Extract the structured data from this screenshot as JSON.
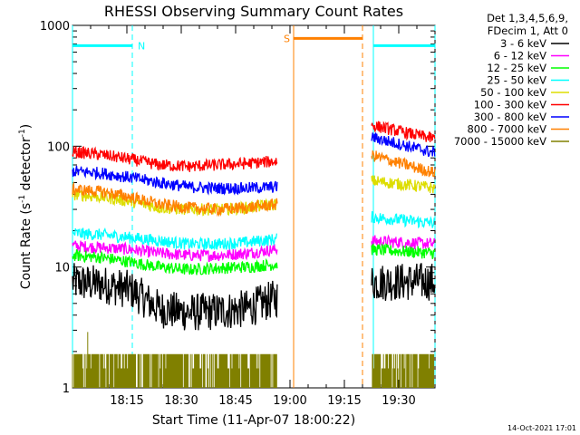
{
  "chart_data": {
    "type": "line",
    "title": "RHESSI Observing Summary Count Rates",
    "xlabel": "Start Time (11-Apr-07 18:00:22)",
    "ylabel_main": "Count Rate (s",
    "ylabel_sup1": "-1",
    "ylabel_mid": " detector",
    "ylabel_sup2": "-1",
    "ylabel_end": ")",
    "y_scale": "log",
    "ylim": [
      1,
      1000
    ],
    "xlim_minutes": [
      0,
      100
    ],
    "x_ticks": [
      {
        "minute": 15,
        "label": "18:15"
      },
      {
        "minute": 30,
        "label": "18:30"
      },
      {
        "minute": 45,
        "label": "18:45"
      },
      {
        "minute": 60,
        "label": "19:00"
      },
      {
        "minute": 75,
        "label": "19:15"
      },
      {
        "minute": 90,
        "label": "19:30"
      }
    ],
    "y_ticks": [
      {
        "value": 1,
        "label": "1"
      },
      {
        "value": 10,
        "label": "10"
      },
      {
        "value": 100,
        "label": "100"
      },
      {
        "value": 1000,
        "label": "1000"
      }
    ],
    "legend_header": [
      "Det 1,3,4,5,6,9,",
      "FDecim 1, Att 0"
    ],
    "data_gap_minutes": [
      56.5,
      80
    ],
    "series": [
      {
        "name": "3 - 6 keV",
        "color": "#000000",
        "values": [
          7.5,
          7.2,
          6.5,
          4.5,
          4.2,
          4.3,
          4.5,
          5.5,
          6.0,
          5.5,
          7.5,
          7.6
        ]
      },
      {
        "name": "6 - 12 keV",
        "color": "#ff00ff",
        "values": [
          15,
          14.5,
          14,
          13,
          12.5,
          12.5,
          13,
          14,
          15,
          15.5,
          16.5,
          15.5
        ]
      },
      {
        "name": "12 - 25 keV",
        "color": "#00ff00",
        "values": [
          12.5,
          12,
          11,
          10,
          9.5,
          9.8,
          10,
          10.5,
          11,
          11.5,
          14,
          13
        ]
      },
      {
        "name": "25 - 50 keV",
        "color": "#00ffff",
        "values": [
          19,
          18.5,
          17.5,
          16.5,
          15.5,
          15.5,
          16,
          17,
          18.5,
          20,
          26,
          23
        ]
      },
      {
        "name": "50 - 100 keV",
        "color": "#dddd00",
        "values": [
          40,
          38,
          35,
          31,
          30,
          30,
          31,
          33,
          36,
          39,
          52,
          45
        ]
      },
      {
        "name": "100 - 300 keV",
        "color": "#ff0000",
        "values": [
          90,
          85,
          78,
          70,
          68,
          70,
          72,
          75,
          78,
          80,
          150,
          115
        ]
      },
      {
        "name": "300 - 800 keV",
        "color": "#0000ff",
        "values": [
          62,
          60,
          55,
          50,
          46,
          45,
          45,
          46,
          48,
          50,
          120,
          88
        ]
      },
      {
        "name": "800 - 7000 keV",
        "color": "#ff8000",
        "values": [
          44,
          42,
          38,
          33,
          31,
          30,
          31,
          33,
          35,
          37,
          85,
          60
        ]
      },
      {
        "name": "7000 - 15000 keV",
        "color": "#808000",
        "values": [
          1.9,
          1.9,
          1.9,
          1.9,
          1.9,
          1.9,
          1.9,
          1.9,
          1.9,
          1.9,
          1.9,
          1.9
        ]
      }
    ],
    "series_minutes": [
      0,
      8,
      16,
      24,
      32,
      40,
      48,
      56,
      59,
      61,
      82,
      100
    ],
    "attenuator_bars": [
      {
        "label": "N",
        "color": "#00ffff",
        "from_minute": 0,
        "to_minute": 16.5,
        "value": 680
      },
      {
        "label": "S",
        "color": "#ff8000",
        "from_minute": 61,
        "to_minute": 80,
        "value": 780
      },
      {
        "label": "",
        "color": "#00ffff",
        "from_minute": 83,
        "to_minute": 100,
        "value": 680
      }
    ],
    "vertical_markers": [
      {
        "minute": 0,
        "color": "#00ffff",
        "style": "solid"
      },
      {
        "minute": 16.5,
        "color": "#00ffff",
        "style": "dashed"
      },
      {
        "minute": 61,
        "color": "#ff8000",
        "style": "solid"
      },
      {
        "minute": 80,
        "color": "#ff8000",
        "style": "dashed"
      },
      {
        "minute": 83,
        "color": "#00ffff",
        "style": "solid"
      },
      {
        "minute": 100,
        "color": "#00ffff",
        "style": "dashed"
      }
    ],
    "timestamp": "14-Oct-2021 17:01"
  }
}
